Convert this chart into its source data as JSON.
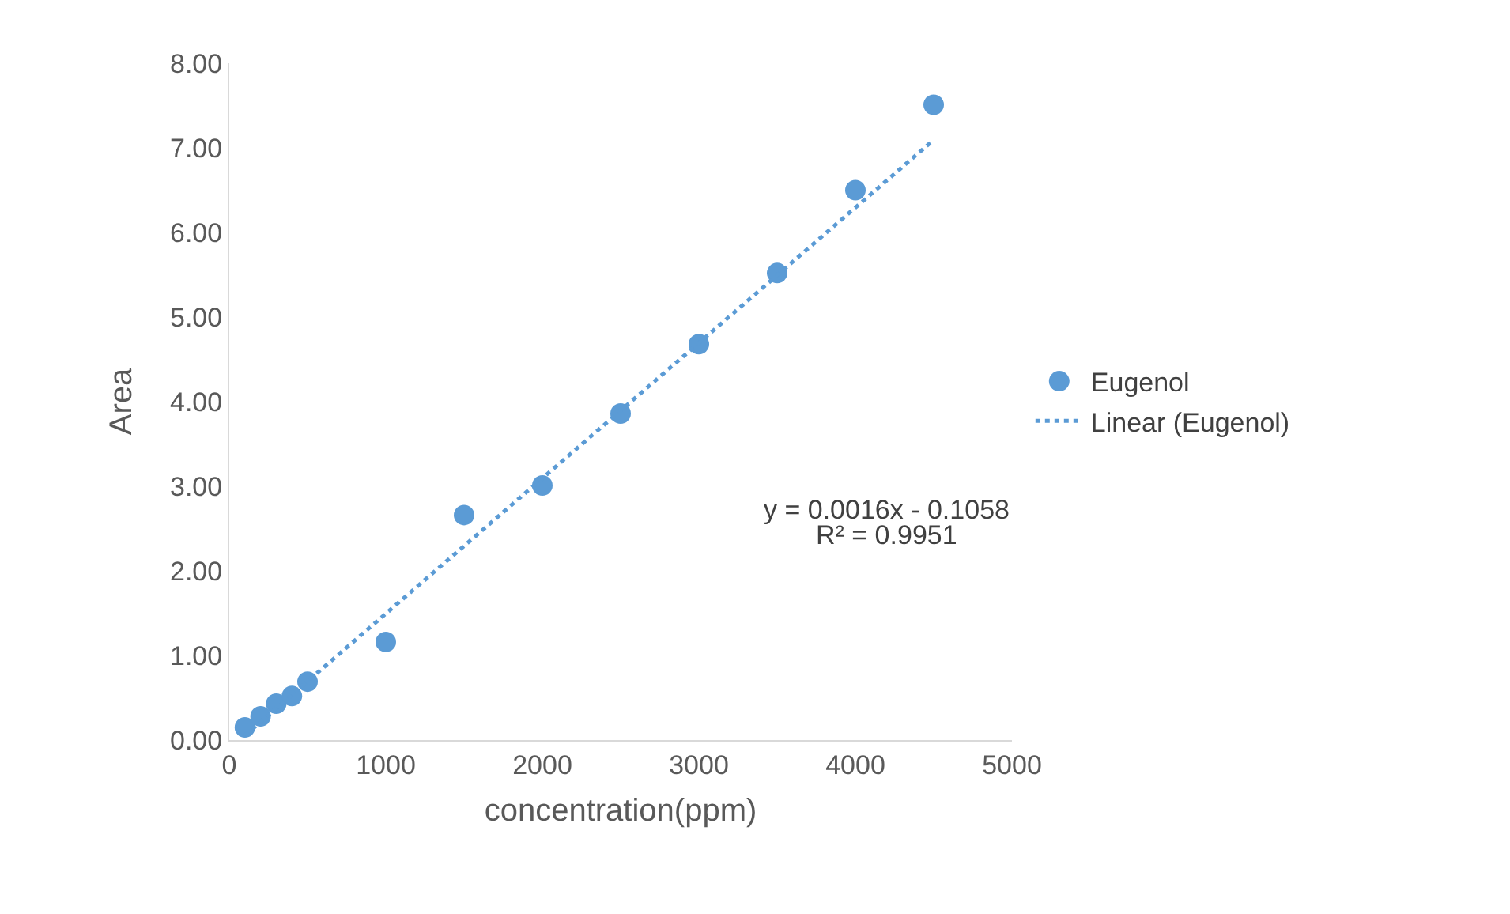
{
  "chart_data": {
    "type": "scatter",
    "xlabel": "concentration(ppm)",
    "ylabel": "Area",
    "xlim": [
      0,
      5000
    ],
    "xticks": [
      0,
      1000,
      2000,
      3000,
      4000,
      5000
    ],
    "ylim": [
      0,
      8
    ],
    "yticks": [
      {
        "value": 0,
        "label": "0.00"
      },
      {
        "value": 1,
        "label": "1.00"
      },
      {
        "value": 2,
        "label": "2.00"
      },
      {
        "value": 3,
        "label": "3.00"
      },
      {
        "value": 4,
        "label": "4.00"
      },
      {
        "value": 5,
        "label": "5.00"
      },
      {
        "value": 6,
        "label": "6.00"
      },
      {
        "value": 7,
        "label": "7.00"
      },
      {
        "value": 8,
        "label": "8.00"
      }
    ],
    "grid": false,
    "legend": "right",
    "marker": "circle",
    "series": [
      {
        "name": "Eugenol",
        "color": "#5b9bd5",
        "x": [
          100,
          200,
          300,
          400,
          500,
          1000,
          1500,
          2000,
          2500,
          3000,
          3500,
          4000,
          4500
        ],
        "values": [
          0.15,
          0.28,
          0.43,
          0.52,
          0.69,
          1.16,
          2.66,
          3.01,
          3.86,
          4.68,
          5.52,
          6.5,
          7.51
        ]
      },
      {
        "name": "Linear (Eugenol)",
        "type": "line",
        "color": "#5b9bd5",
        "line_style": "dotted",
        "marker": "none",
        "x": [
          100,
          4500
        ],
        "values": [
          0.054,
          7.094
        ]
      }
    ],
    "annotations": [
      "y = 0.0016x - 0.1058",
      "R² = 0.9951"
    ]
  }
}
